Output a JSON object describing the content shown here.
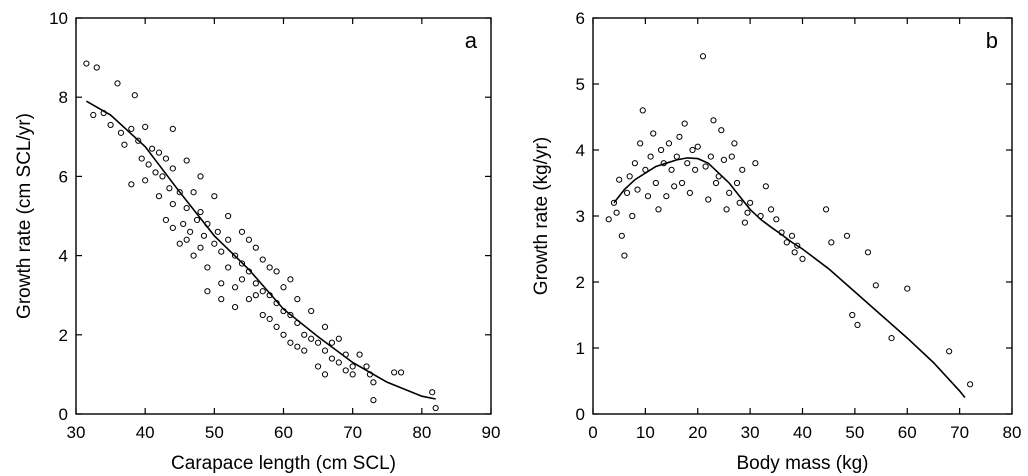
{
  "chart_data": [
    {
      "type": "scatter",
      "panel_label": "a",
      "xlabel": "Carapace length (cm SCL)",
      "ylabel": "Growth rate (cm SCL/yr)",
      "xlim": [
        30,
        90
      ],
      "ylim": [
        0,
        10
      ],
      "xticks": [
        30,
        40,
        50,
        60,
        70,
        80,
        90
      ],
      "yticks": [
        0,
        2,
        4,
        6,
        8,
        10
      ],
      "grid": false,
      "point_style": "open-circle",
      "points": [
        [
          31.5,
          8.85
        ],
        [
          33,
          8.75
        ],
        [
          36,
          8.35
        ],
        [
          38.5,
          8.05
        ],
        [
          32.5,
          7.55
        ],
        [
          34,
          7.6
        ],
        [
          35,
          7.3
        ],
        [
          36.5,
          7.1
        ],
        [
          37,
          6.8
        ],
        [
          38,
          7.2
        ],
        [
          39,
          6.9
        ],
        [
          40,
          7.25
        ],
        [
          41,
          6.7
        ],
        [
          42,
          6.6
        ],
        [
          43,
          6.45
        ],
        [
          44,
          7.2
        ],
        [
          40.5,
          6.3
        ],
        [
          39.5,
          6.45
        ],
        [
          41.5,
          6.1
        ],
        [
          42.5,
          6.0
        ],
        [
          43.5,
          5.7
        ],
        [
          45,
          5.6
        ],
        [
          44,
          5.3
        ],
        [
          46,
          5.2
        ],
        [
          47,
          5.6
        ],
        [
          48,
          5.1
        ],
        [
          45.5,
          4.8
        ],
        [
          46.5,
          4.6
        ],
        [
          47.5,
          4.9
        ],
        [
          48.5,
          4.5
        ],
        [
          49,
          4.8
        ],
        [
          50,
          4.3
        ],
        [
          50.5,
          4.6
        ],
        [
          51,
          4.1
        ],
        [
          52,
          4.4
        ],
        [
          53,
          4.0
        ],
        [
          54,
          3.8
        ],
        [
          55,
          3.6
        ],
        [
          56,
          3.3
        ],
        [
          57,
          3.1
        ],
        [
          58,
          3.0
        ],
        [
          59,
          2.8
        ],
        [
          60,
          2.6
        ],
        [
          61,
          2.5
        ],
        [
          62,
          2.3
        ],
        [
          63,
          2.0
        ],
        [
          64,
          1.9
        ],
        [
          65,
          1.8
        ],
        [
          66,
          1.6
        ],
        [
          67,
          1.4
        ],
        [
          68,
          1.3
        ],
        [
          69,
          1.5
        ],
        [
          70,
          1.2
        ],
        [
          71,
          1.5
        ],
        [
          72.5,
          1.0
        ],
        [
          73,
          0.8
        ],
        [
          76,
          1.05
        ],
        [
          77,
          1.05
        ],
        [
          81.5,
          0.55
        ],
        [
          82,
          0.15
        ],
        [
          73,
          0.35
        ],
        [
          49,
          3.7
        ],
        [
          51,
          3.3
        ],
        [
          53,
          3.2
        ],
        [
          55,
          2.9
        ],
        [
          57,
          2.5
        ],
        [
          59,
          2.2
        ],
        [
          61,
          1.8
        ],
        [
          63,
          1.6
        ],
        [
          65,
          1.2
        ],
        [
          45,
          4.3
        ],
        [
          47,
          4.0
        ],
        [
          43,
          4.9
        ],
        [
          55,
          4.4
        ],
        [
          57,
          3.9
        ],
        [
          59,
          3.6
        ],
        [
          61,
          3.4
        ],
        [
          62,
          2.9
        ],
        [
          50,
          5.5
        ],
        [
          52,
          5.0
        ],
        [
          54,
          4.6
        ],
        [
          56,
          4.2
        ],
        [
          48,
          6.0
        ],
        [
          46,
          6.4
        ],
        [
          44,
          6.2
        ],
        [
          60,
          3.2
        ],
        [
          58,
          3.7
        ],
        [
          53,
          2.7
        ],
        [
          51,
          2.9
        ],
        [
          49,
          3.1
        ],
        [
          66,
          2.2
        ],
        [
          67,
          1.8
        ],
        [
          64,
          2.6
        ],
        [
          68,
          1.9
        ],
        [
          69,
          1.1
        ],
        [
          70,
          1.0
        ],
        [
          72,
          1.2
        ],
        [
          66,
          1.0
        ],
        [
          38,
          5.8
        ],
        [
          40,
          5.9
        ],
        [
          42,
          5.5
        ],
        [
          44,
          4.7
        ],
        [
          46,
          4.4
        ],
        [
          48,
          4.2
        ],
        [
          52,
          3.7
        ],
        [
          54,
          3.4
        ],
        [
          56,
          3.0
        ],
        [
          58,
          2.4
        ],
        [
          60,
          2.0
        ],
        [
          62,
          1.7
        ]
      ],
      "fit_curve": [
        [
          31.5,
          7.9
        ],
        [
          35,
          7.55
        ],
        [
          40,
          6.75
        ],
        [
          45,
          5.6
        ],
        [
          50,
          4.5
        ],
        [
          55,
          3.65
        ],
        [
          60,
          2.65
        ],
        [
          65,
          1.95
        ],
        [
          70,
          1.3
        ],
        [
          75,
          0.8
        ],
        [
          80,
          0.45
        ],
        [
          82,
          0.38
        ]
      ]
    },
    {
      "type": "scatter",
      "panel_label": "b",
      "xlabel": "Body mass (kg)",
      "ylabel": "Growth rate (kg/yr)",
      "xlim": [
        0,
        80
      ],
      "ylim": [
        0,
        6
      ],
      "xticks": [
        0,
        10,
        20,
        30,
        40,
        50,
        60,
        70,
        80
      ],
      "yticks": [
        0,
        1,
        2,
        3,
        4,
        5,
        6
      ],
      "grid": false,
      "point_style": "open-circle",
      "points": [
        [
          3,
          2.95
        ],
        [
          4,
          3.2
        ],
        [
          4.5,
          3.05
        ],
        [
          5,
          3.55
        ],
        [
          5.5,
          2.7
        ],
        [
          6,
          2.4
        ],
        [
          6.5,
          3.35
        ],
        [
          7,
          3.6
        ],
        [
          7.5,
          3.0
        ],
        [
          8,
          3.8
        ],
        [
          8.5,
          3.4
        ],
        [
          9,
          4.1
        ],
        [
          9.5,
          4.6
        ],
        [
          10,
          3.7
        ],
        [
          10.5,
          3.3
        ],
        [
          11,
          3.9
        ],
        [
          11.5,
          4.25
        ],
        [
          12,
          3.5
        ],
        [
          12.5,
          3.1
        ],
        [
          13,
          4.0
        ],
        [
          13.5,
          3.8
        ],
        [
          14,
          3.3
        ],
        [
          14.5,
          4.1
        ],
        [
          15,
          3.7
        ],
        [
          15.5,
          3.45
        ],
        [
          16,
          3.9
        ],
        [
          16.5,
          4.2
        ],
        [
          17,
          3.5
        ],
        [
          17.5,
          4.4
        ],
        [
          18,
          3.8
        ],
        [
          18.5,
          3.35
        ],
        [
          19,
          4.0
        ],
        [
          19.5,
          3.7
        ],
        [
          20,
          4.05
        ],
        [
          21,
          5.42
        ],
        [
          21.5,
          3.75
        ],
        [
          22,
          3.25
        ],
        [
          22.5,
          3.9
        ],
        [
          23,
          4.45
        ],
        [
          23.5,
          3.5
        ],
        [
          24,
          3.6
        ],
        [
          24.5,
          4.3
        ],
        [
          25,
          3.85
        ],
        [
          25.5,
          3.1
        ],
        [
          26,
          3.35
        ],
        [
          26.5,
          3.9
        ],
        [
          27,
          4.1
        ],
        [
          27.5,
          3.5
        ],
        [
          28,
          3.2
        ],
        [
          28.5,
          3.7
        ],
        [
          29,
          2.9
        ],
        [
          29.5,
          3.05
        ],
        [
          30,
          3.2
        ],
        [
          31,
          3.8
        ],
        [
          32,
          3.0
        ],
        [
          33,
          3.45
        ],
        [
          34,
          3.1
        ],
        [
          35,
          2.95
        ],
        [
          36,
          2.75
        ],
        [
          37,
          2.6
        ],
        [
          38,
          2.7
        ],
        [
          38.5,
          2.45
        ],
        [
          39,
          2.55
        ],
        [
          40,
          2.35
        ],
        [
          44.5,
          3.1
        ],
        [
          45.5,
          2.6
        ],
        [
          48.5,
          2.7
        ],
        [
          49.5,
          1.5
        ],
        [
          50.5,
          1.35
        ],
        [
          52.5,
          2.45
        ],
        [
          54,
          1.95
        ],
        [
          57,
          1.15
        ],
        [
          60,
          1.9
        ],
        [
          68,
          0.95
        ],
        [
          72,
          0.45
        ]
      ],
      "fit_curve": [
        [
          4,
          3.2
        ],
        [
          6,
          3.4
        ],
        [
          8,
          3.55
        ],
        [
          10,
          3.65
        ],
        [
          12,
          3.75
        ],
        [
          14,
          3.8
        ],
        [
          16,
          3.85
        ],
        [
          18,
          3.88
        ],
        [
          20,
          3.87
        ],
        [
          22,
          3.8
        ],
        [
          24,
          3.65
        ],
        [
          26,
          3.5
        ],
        [
          28,
          3.3
        ],
        [
          30,
          3.1
        ],
        [
          32,
          2.95
        ],
        [
          34,
          2.83
        ],
        [
          36,
          2.72
        ],
        [
          38,
          2.6
        ],
        [
          40,
          2.5
        ],
        [
          45,
          2.2
        ],
        [
          50,
          1.85
        ],
        [
          55,
          1.5
        ],
        [
          60,
          1.15
        ],
        [
          65,
          0.78
        ],
        [
          70,
          0.35
        ],
        [
          71,
          0.25
        ]
      ]
    }
  ]
}
